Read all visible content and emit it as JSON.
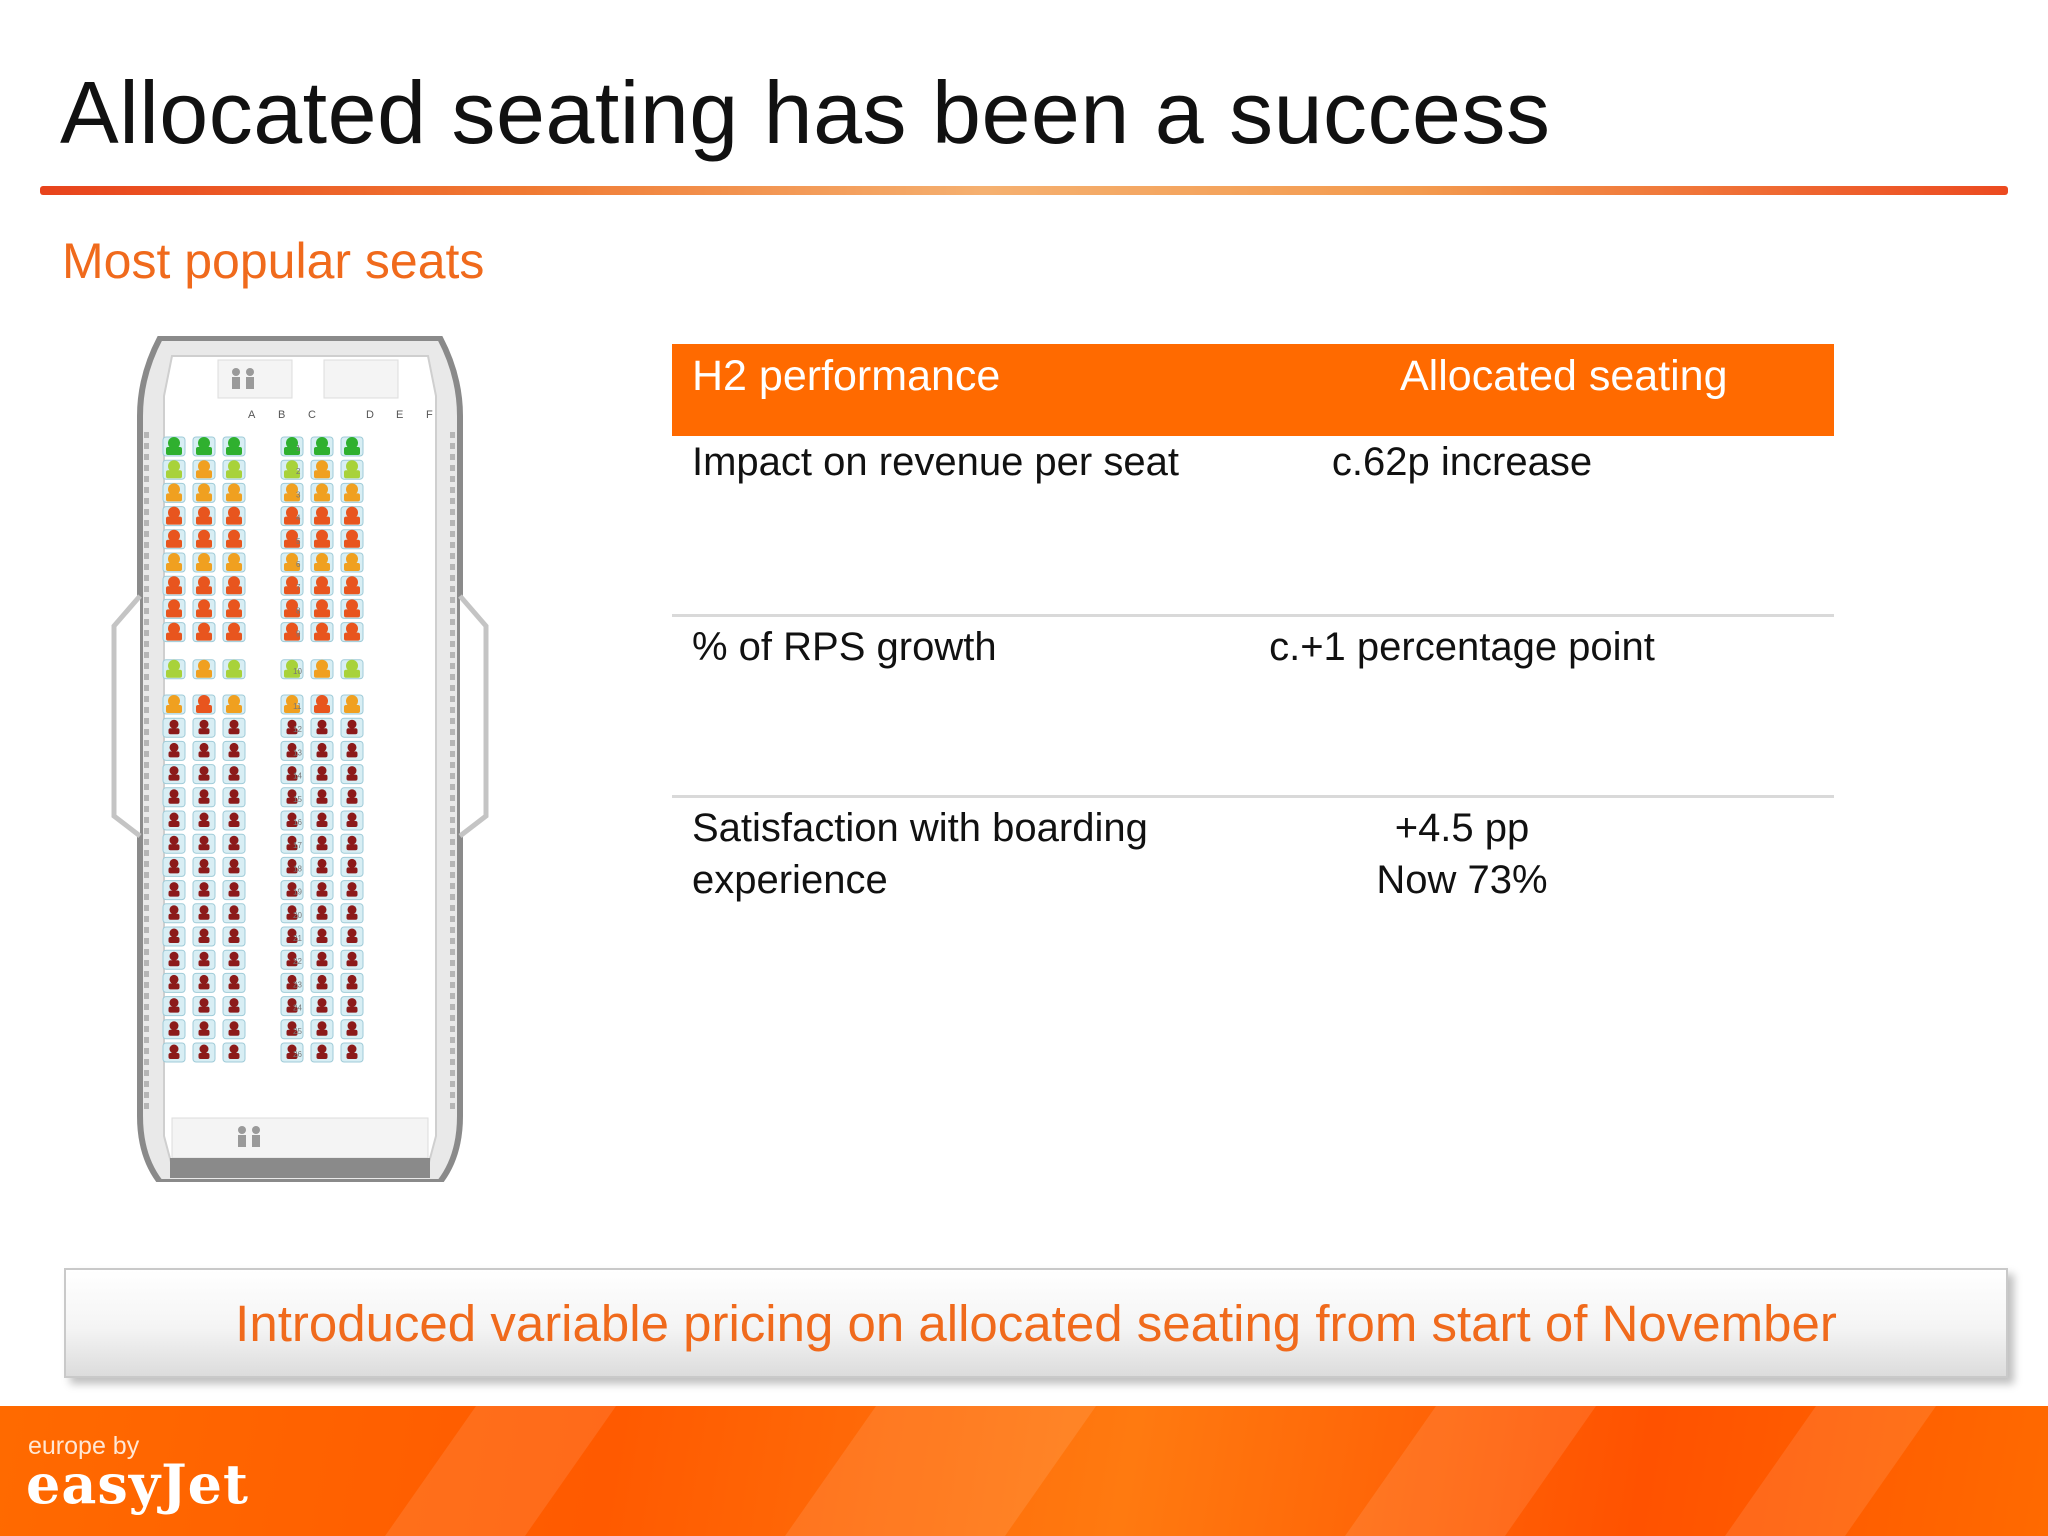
{
  "slide": {
    "title": "Allocated seating has been a success",
    "subtitle": "Most popular seats"
  },
  "seatmap": {
    "left_columns": [
      "A",
      "B",
      "C"
    ],
    "right_columns": [
      "D",
      "E",
      "F"
    ],
    "rows": 26,
    "popularity_colors": {
      "most_popular": "#2fb02f",
      "popular": "#a8d23a",
      "medium": "#f0a020",
      "less_popular": "#e8551e",
      "least_popular": "#8c1a1a"
    }
  },
  "table": {
    "headers": [
      "H2 performance",
      "Allocated seating"
    ],
    "rows": [
      {
        "metric": "Impact on revenue per seat",
        "value_lines": [
          "c.62p increase"
        ]
      },
      {
        "metric": "% of RPS growth",
        "value_lines": [
          "c.+1 percentage point"
        ]
      },
      {
        "metric_lines": [
          "Satisfaction with boarding",
          "experience"
        ],
        "value_lines": [
          "+4.5 pp",
          "Now 73%"
        ]
      }
    ]
  },
  "callout": "Introduced variable pricing on allocated seating from start of November",
  "footer": {
    "tagline": "europe by",
    "brand": "easyJet"
  },
  "colors": {
    "accent_orange": "#ff6a00",
    "subtitle_orange": "#f06a1c"
  }
}
